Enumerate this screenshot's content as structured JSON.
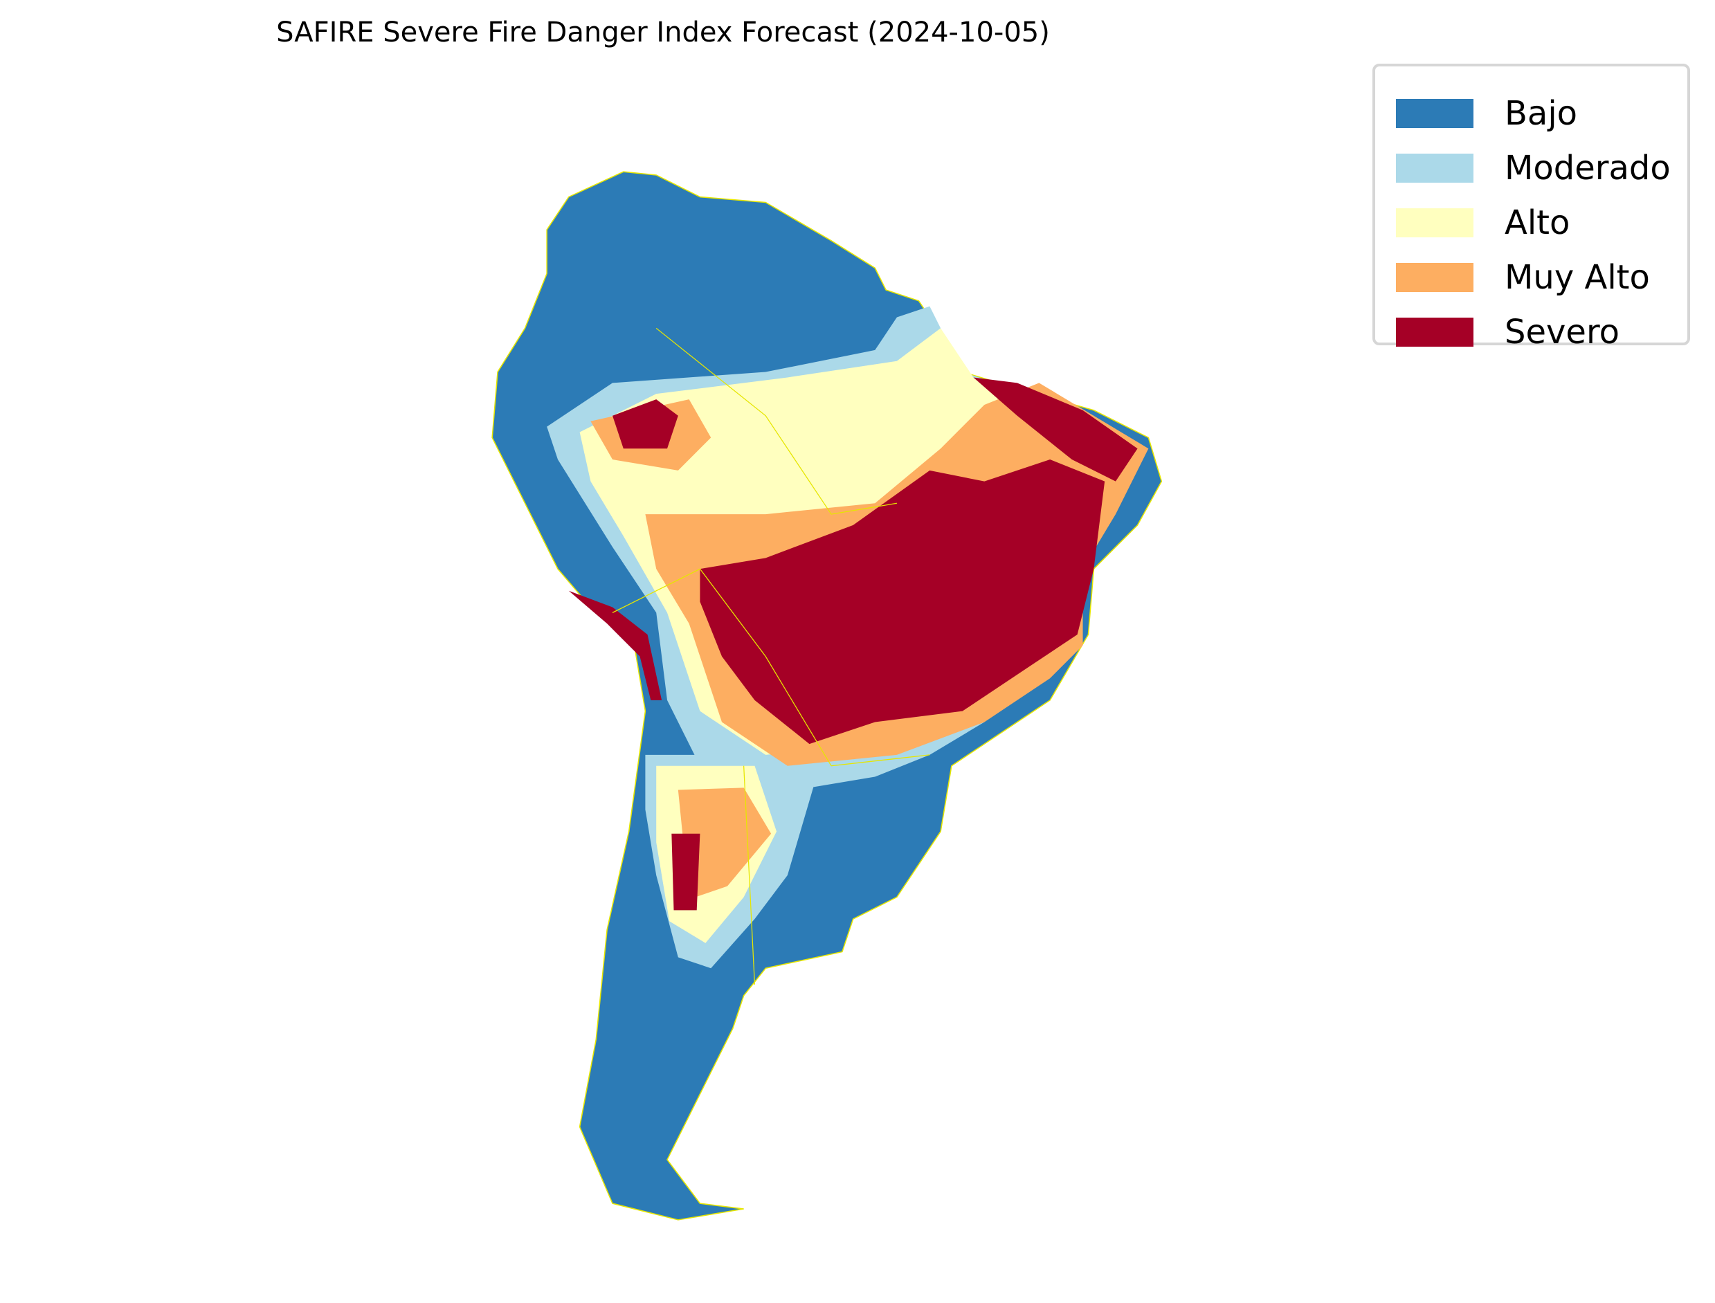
{
  "chart_data": {
    "type": "map",
    "title": "SAFIRE Severe Fire Danger Index Forecast (2024-10-05)",
    "region": "South America",
    "legend": [
      {
        "label": "Bajo",
        "color": "#2c7bb6"
      },
      {
        "label": "Moderado",
        "color": "#abd9e9"
      },
      {
        "label": "Alto",
        "color": "#ffffbf"
      },
      {
        "label": "Muy Alto",
        "color": "#fdae61"
      },
      {
        "label": "Severo",
        "color": "#a50026"
      }
    ],
    "legend_placement": "top-right",
    "border_color": "#e6e600"
  }
}
